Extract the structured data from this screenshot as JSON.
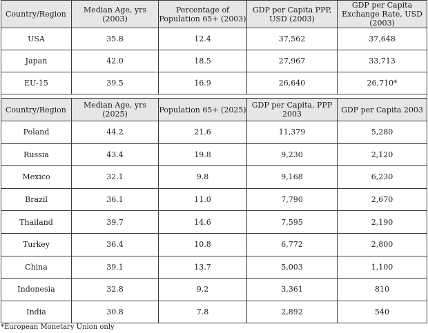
{
  "table1": {
    "headers": [
      "Country/Region",
      "Median Age, yrs (2003)",
      "Percentage of Population 65+ (2003)",
      "GDP per Capita PPP, USD (2003)",
      "GDP per Capita Exchange Rate, USD (2003)"
    ],
    "rows": [
      [
        "USA",
        "35.8",
        "12.4",
        "37,562",
        "37,648"
      ],
      [
        "Japan",
        "42.0",
        "18.5",
        "27,967",
        "33,713"
      ],
      [
        "EU-15",
        "39.5",
        "16.9",
        "26,640",
        "26,710*"
      ]
    ]
  },
  "table2": {
    "headers": [
      "Country/Region",
      "Median Age, yrs (2025)",
      "Population 65+ (2025)",
      "GDP per Capita, PPP 2003",
      "GDP per Capita 2003"
    ],
    "rows": [
      [
        "Poland",
        "44.2",
        "21.6",
        "11,379",
        "5,280"
      ],
      [
        "Russia",
        "43.4",
        "19.8",
        "9,230",
        "2,120"
      ],
      [
        "Mexico",
        "32.1",
        "9.8",
        "9,168",
        "6,230"
      ],
      [
        "Brazil",
        "36.1",
        "11.0",
        "7,790",
        "2,670"
      ],
      [
        "Thailand",
        "39.7",
        "14.6",
        "7,595",
        "2,190"
      ],
      [
        "Turkey",
        "36.4",
        "10.8",
        "6,772",
        "2,800"
      ],
      [
        "China",
        "39.1",
        "13.7",
        "5,003",
        "1,100"
      ],
      [
        "Indonesia",
        "32.8",
        "9.2",
        "3,361",
        "810"
      ],
      [
        "India",
        "30.8",
        "7.8",
        "2,892",
        "540"
      ]
    ]
  },
  "footnote": "*European Monetary Union only",
  "colors": {
    "header_bg": "#e6e6e6",
    "border": "#3a3a3a"
  }
}
